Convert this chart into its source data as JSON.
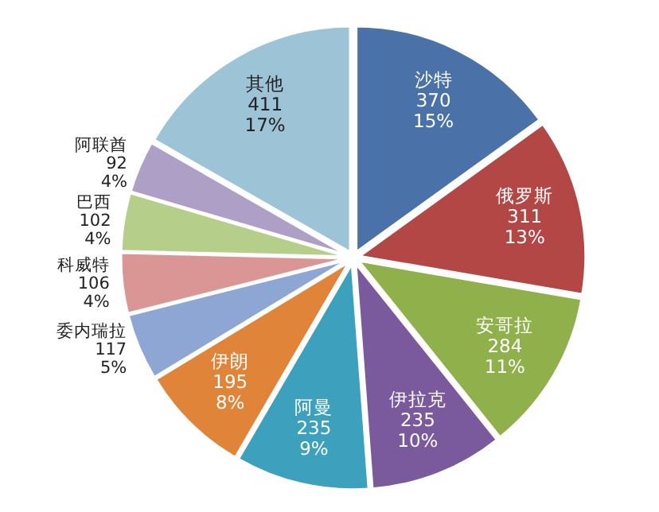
{
  "chart_data": {
    "type": "pie",
    "categories": [
      "沙特",
      "俄罗斯",
      "安哥拉",
      "伊拉克",
      "阿曼",
      "伊朗",
      "委内瑞拉",
      "科威特",
      "巴西",
      "阿联酋",
      "其他"
    ],
    "values": [
      370,
      311,
      284,
      235,
      235,
      195,
      117,
      106,
      102,
      92,
      411
    ],
    "value_labels": [
      "370\n15%",
      "311\n13%",
      "284\n11%",
      "235\n10%",
      "235\n9%",
      "195\n8%",
      "117\n5%",
      "106\n4%",
      "102\n4%",
      "92\n4%",
      "411\n17%"
    ],
    "colors": [
      "#4a72a8",
      "#b34745",
      "#8fb04a",
      "#7a5a9c",
      "#3da0bc",
      "#e0843a",
      "#8ea6d4",
      "#d99694",
      "#b5cf8a",
      "#ad9fc6",
      "#9dc3d6"
    ]
  }
}
